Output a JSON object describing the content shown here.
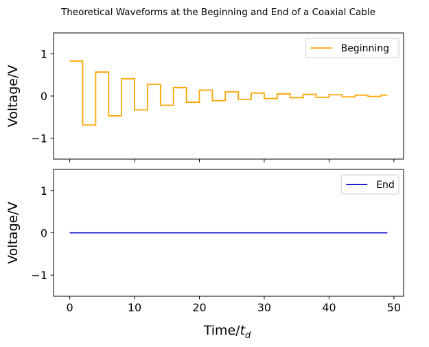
{
  "figure": {
    "title": "Theoretical Waveforms at the Beginning and End of a Coaxial Cable"
  },
  "chart_data": [
    {
      "type": "line",
      "step": true,
      "title": "",
      "xlabel": "",
      "ylabel": "Voltage/V",
      "xlim": [
        -2.5,
        51.5
      ],
      "ylim": [
        -1.5,
        1.5
      ],
      "xticks": [
        0,
        10,
        20,
        30,
        40,
        50
      ],
      "yticks": [
        1,
        0,
        -1
      ],
      "ytick_labels": [
        "1",
        "0",
        "−1"
      ],
      "xtick_labels_visible": false,
      "grid": false,
      "legend_position": "top-right",
      "series": [
        {
          "name": "Beginning",
          "color": "#ffa500",
          "x": [
            0,
            2,
            4,
            6,
            8,
            10,
            12,
            14,
            16,
            18,
            20,
            22,
            24,
            26,
            28,
            30,
            32,
            34,
            36,
            38,
            40,
            42,
            44,
            46,
            48,
            49
          ],
          "y": [
            0.83,
            -0.69,
            0.57,
            -0.47,
            0.41,
            -0.33,
            0.28,
            -0.22,
            0.2,
            -0.15,
            0.14,
            -0.11,
            0.1,
            -0.08,
            0.07,
            -0.06,
            0.05,
            -0.04,
            0.04,
            -0.03,
            0.03,
            -0.02,
            0.02,
            -0.01,
            0.02,
            0.02
          ]
        }
      ]
    },
    {
      "type": "line",
      "title": "",
      "xlabel": "Time/",
      "xlabel_italic": "t",
      "xlabel_subscript": "d",
      "ylabel": "Voltage/V",
      "xlim": [
        -2.5,
        51.5
      ],
      "ylim": [
        -1.5,
        1.5
      ],
      "xticks": [
        0,
        10,
        20,
        30,
        40,
        50
      ],
      "xtick_labels": [
        "0",
        "10",
        "20",
        "30",
        "40",
        "50"
      ],
      "yticks": [
        1,
        0,
        -1
      ],
      "ytick_labels": [
        "1",
        "0",
        "−1"
      ],
      "grid": false,
      "legend_position": "top-right",
      "series": [
        {
          "name": "End",
          "color": "#0000cd",
          "x": [
            0,
            49
          ],
          "y": [
            0,
            0
          ]
        }
      ]
    }
  ]
}
